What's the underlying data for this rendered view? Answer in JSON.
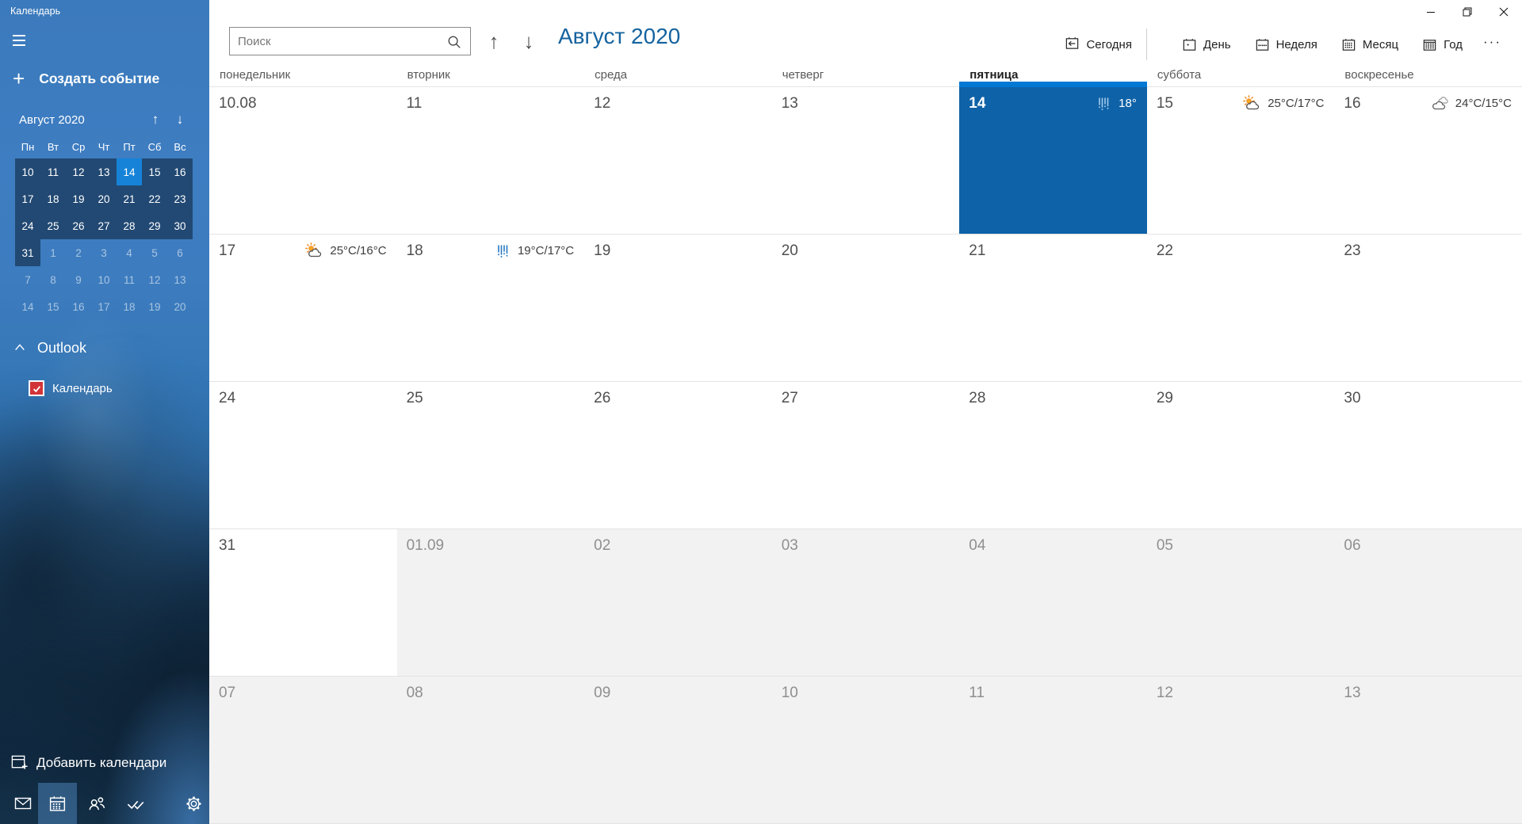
{
  "app_title": "Календарь",
  "colors": {
    "accent": "#0078d4",
    "selected_cell": "#0e62a7",
    "mini_selected": "#1683d8",
    "checkbox_red": "#d13438",
    "other_month_bg": "#f2f2f2",
    "title_blue": "#15639f"
  },
  "sidebar": {
    "menu": {
      "create_event": "Создать событие"
    },
    "mini_calendar": {
      "title": "Август 2020",
      "day_names": [
        "Пн",
        "Вт",
        "Ср",
        "Чт",
        "Пт",
        "Сб",
        "Вс"
      ],
      "weeks": [
        {
          "days": [
            {
              "n": "10",
              "cur": true
            },
            {
              "n": "11",
              "cur": true
            },
            {
              "n": "12",
              "cur": true
            },
            {
              "n": "13",
              "cur": true
            },
            {
              "n": "14",
              "cur": true,
              "sel": true
            },
            {
              "n": "15",
              "cur": true
            },
            {
              "n": "16",
              "cur": true
            }
          ]
        },
        {
          "days": [
            {
              "n": "17",
              "cur": true
            },
            {
              "n": "18",
              "cur": true
            },
            {
              "n": "19",
              "cur": true
            },
            {
              "n": "20",
              "cur": true
            },
            {
              "n": "21",
              "cur": true
            },
            {
              "n": "22",
              "cur": true
            },
            {
              "n": "23",
              "cur": true
            }
          ]
        },
        {
          "days": [
            {
              "n": "24",
              "cur": true
            },
            {
              "n": "25",
              "cur": true
            },
            {
              "n": "26",
              "cur": true
            },
            {
              "n": "27",
              "cur": true
            },
            {
              "n": "28",
              "cur": true
            },
            {
              "n": "29",
              "cur": true
            },
            {
              "n": "30",
              "cur": true
            }
          ]
        },
        {
          "days": [
            {
              "n": "31",
              "cur": true
            },
            {
              "n": "1"
            },
            {
              "n": "2"
            },
            {
              "n": "3"
            },
            {
              "n": "4"
            },
            {
              "n": "5"
            },
            {
              "n": "6"
            }
          ]
        },
        {
          "days": [
            {
              "n": "7"
            },
            {
              "n": "8"
            },
            {
              "n": "9"
            },
            {
              "n": "10"
            },
            {
              "n": "11"
            },
            {
              "n": "12"
            },
            {
              "n": "13"
            }
          ]
        },
        {
          "days": [
            {
              "n": "14"
            },
            {
              "n": "15"
            },
            {
              "n": "16"
            },
            {
              "n": "17"
            },
            {
              "n": "18"
            },
            {
              "n": "19"
            },
            {
              "n": "20"
            }
          ]
        }
      ]
    },
    "accounts": {
      "group_label": "Outlook",
      "calendars": [
        {
          "label": "Календарь",
          "checked": true,
          "color": "#d13438"
        }
      ]
    },
    "add_calendars_label": "Добавить календари",
    "bottom_nav": [
      {
        "name": "mail",
        "icon": "mail-icon",
        "active": false
      },
      {
        "name": "calendar",
        "icon": "calendar-icon",
        "active": true
      },
      {
        "name": "people",
        "icon": "people-icon",
        "active": false
      },
      {
        "name": "tasks",
        "icon": "tasks-icon",
        "active": false
      },
      {
        "name": "settings",
        "icon": "settings-icon",
        "active": false
      }
    ]
  },
  "header": {
    "search": {
      "placeholder": "Поиск",
      "value": ""
    },
    "title": "Август 2020",
    "toolbar": {
      "today": "Сегодня",
      "views": [
        {
          "key": "day",
          "icon": "day-view-icon",
          "label": "День"
        },
        {
          "key": "week",
          "icon": "week-view-icon",
          "label": "Неделя"
        },
        {
          "key": "month",
          "icon": "month-view-icon",
          "label": "Месяц"
        },
        {
          "key": "year",
          "icon": "year-view-icon",
          "label": "Год"
        }
      ],
      "more": "···"
    }
  },
  "calendar": {
    "day_headers": [
      "понедельник",
      "вторник",
      "среда",
      "четверг",
      "пятница",
      "суббота",
      "воскресенье"
    ],
    "today_column": 4,
    "weeks": [
      {
        "cells": [
          {
            "label": "10.08"
          },
          {
            "label": "11"
          },
          {
            "label": "12"
          },
          {
            "label": "13"
          },
          {
            "label": "14",
            "selected": true,
            "weather": {
              "icon": "rain-icon",
              "temp": "18°"
            }
          },
          {
            "label": "15",
            "weather": {
              "icon": "partly-sunny-icon",
              "temp": "25°C/17°C"
            }
          },
          {
            "label": "16",
            "weather": {
              "icon": "cloudy-icon",
              "temp": "24°C/15°C"
            }
          }
        ]
      },
      {
        "cells": [
          {
            "label": "17",
            "weather": {
              "icon": "partly-sunny-icon",
              "temp": "25°C/16°C"
            }
          },
          {
            "label": "18",
            "weather": {
              "icon": "rain-icon",
              "temp": "19°C/17°C"
            }
          },
          {
            "label": "19"
          },
          {
            "label": "20"
          },
          {
            "label": "21"
          },
          {
            "label": "22"
          },
          {
            "label": "23"
          }
        ]
      },
      {
        "cells": [
          {
            "label": "24"
          },
          {
            "label": "25"
          },
          {
            "label": "26"
          },
          {
            "label": "27"
          },
          {
            "label": "28"
          },
          {
            "label": "29"
          },
          {
            "label": "30"
          }
        ]
      },
      {
        "cells": [
          {
            "label": "31"
          },
          {
            "label": "01.09",
            "other": true
          },
          {
            "label": "02",
            "other": true
          },
          {
            "label": "03",
            "other": true
          },
          {
            "label": "04",
            "other": true
          },
          {
            "label": "05",
            "other": true
          },
          {
            "label": "06",
            "other": true
          }
        ]
      },
      {
        "cells": [
          {
            "label": "07",
            "other": true
          },
          {
            "label": "08",
            "other": true
          },
          {
            "label": "09",
            "other": true
          },
          {
            "label": "10",
            "other": true
          },
          {
            "label": "11",
            "other": true
          },
          {
            "label": "12",
            "other": true
          },
          {
            "label": "13",
            "other": true
          }
        ]
      }
    ]
  }
}
